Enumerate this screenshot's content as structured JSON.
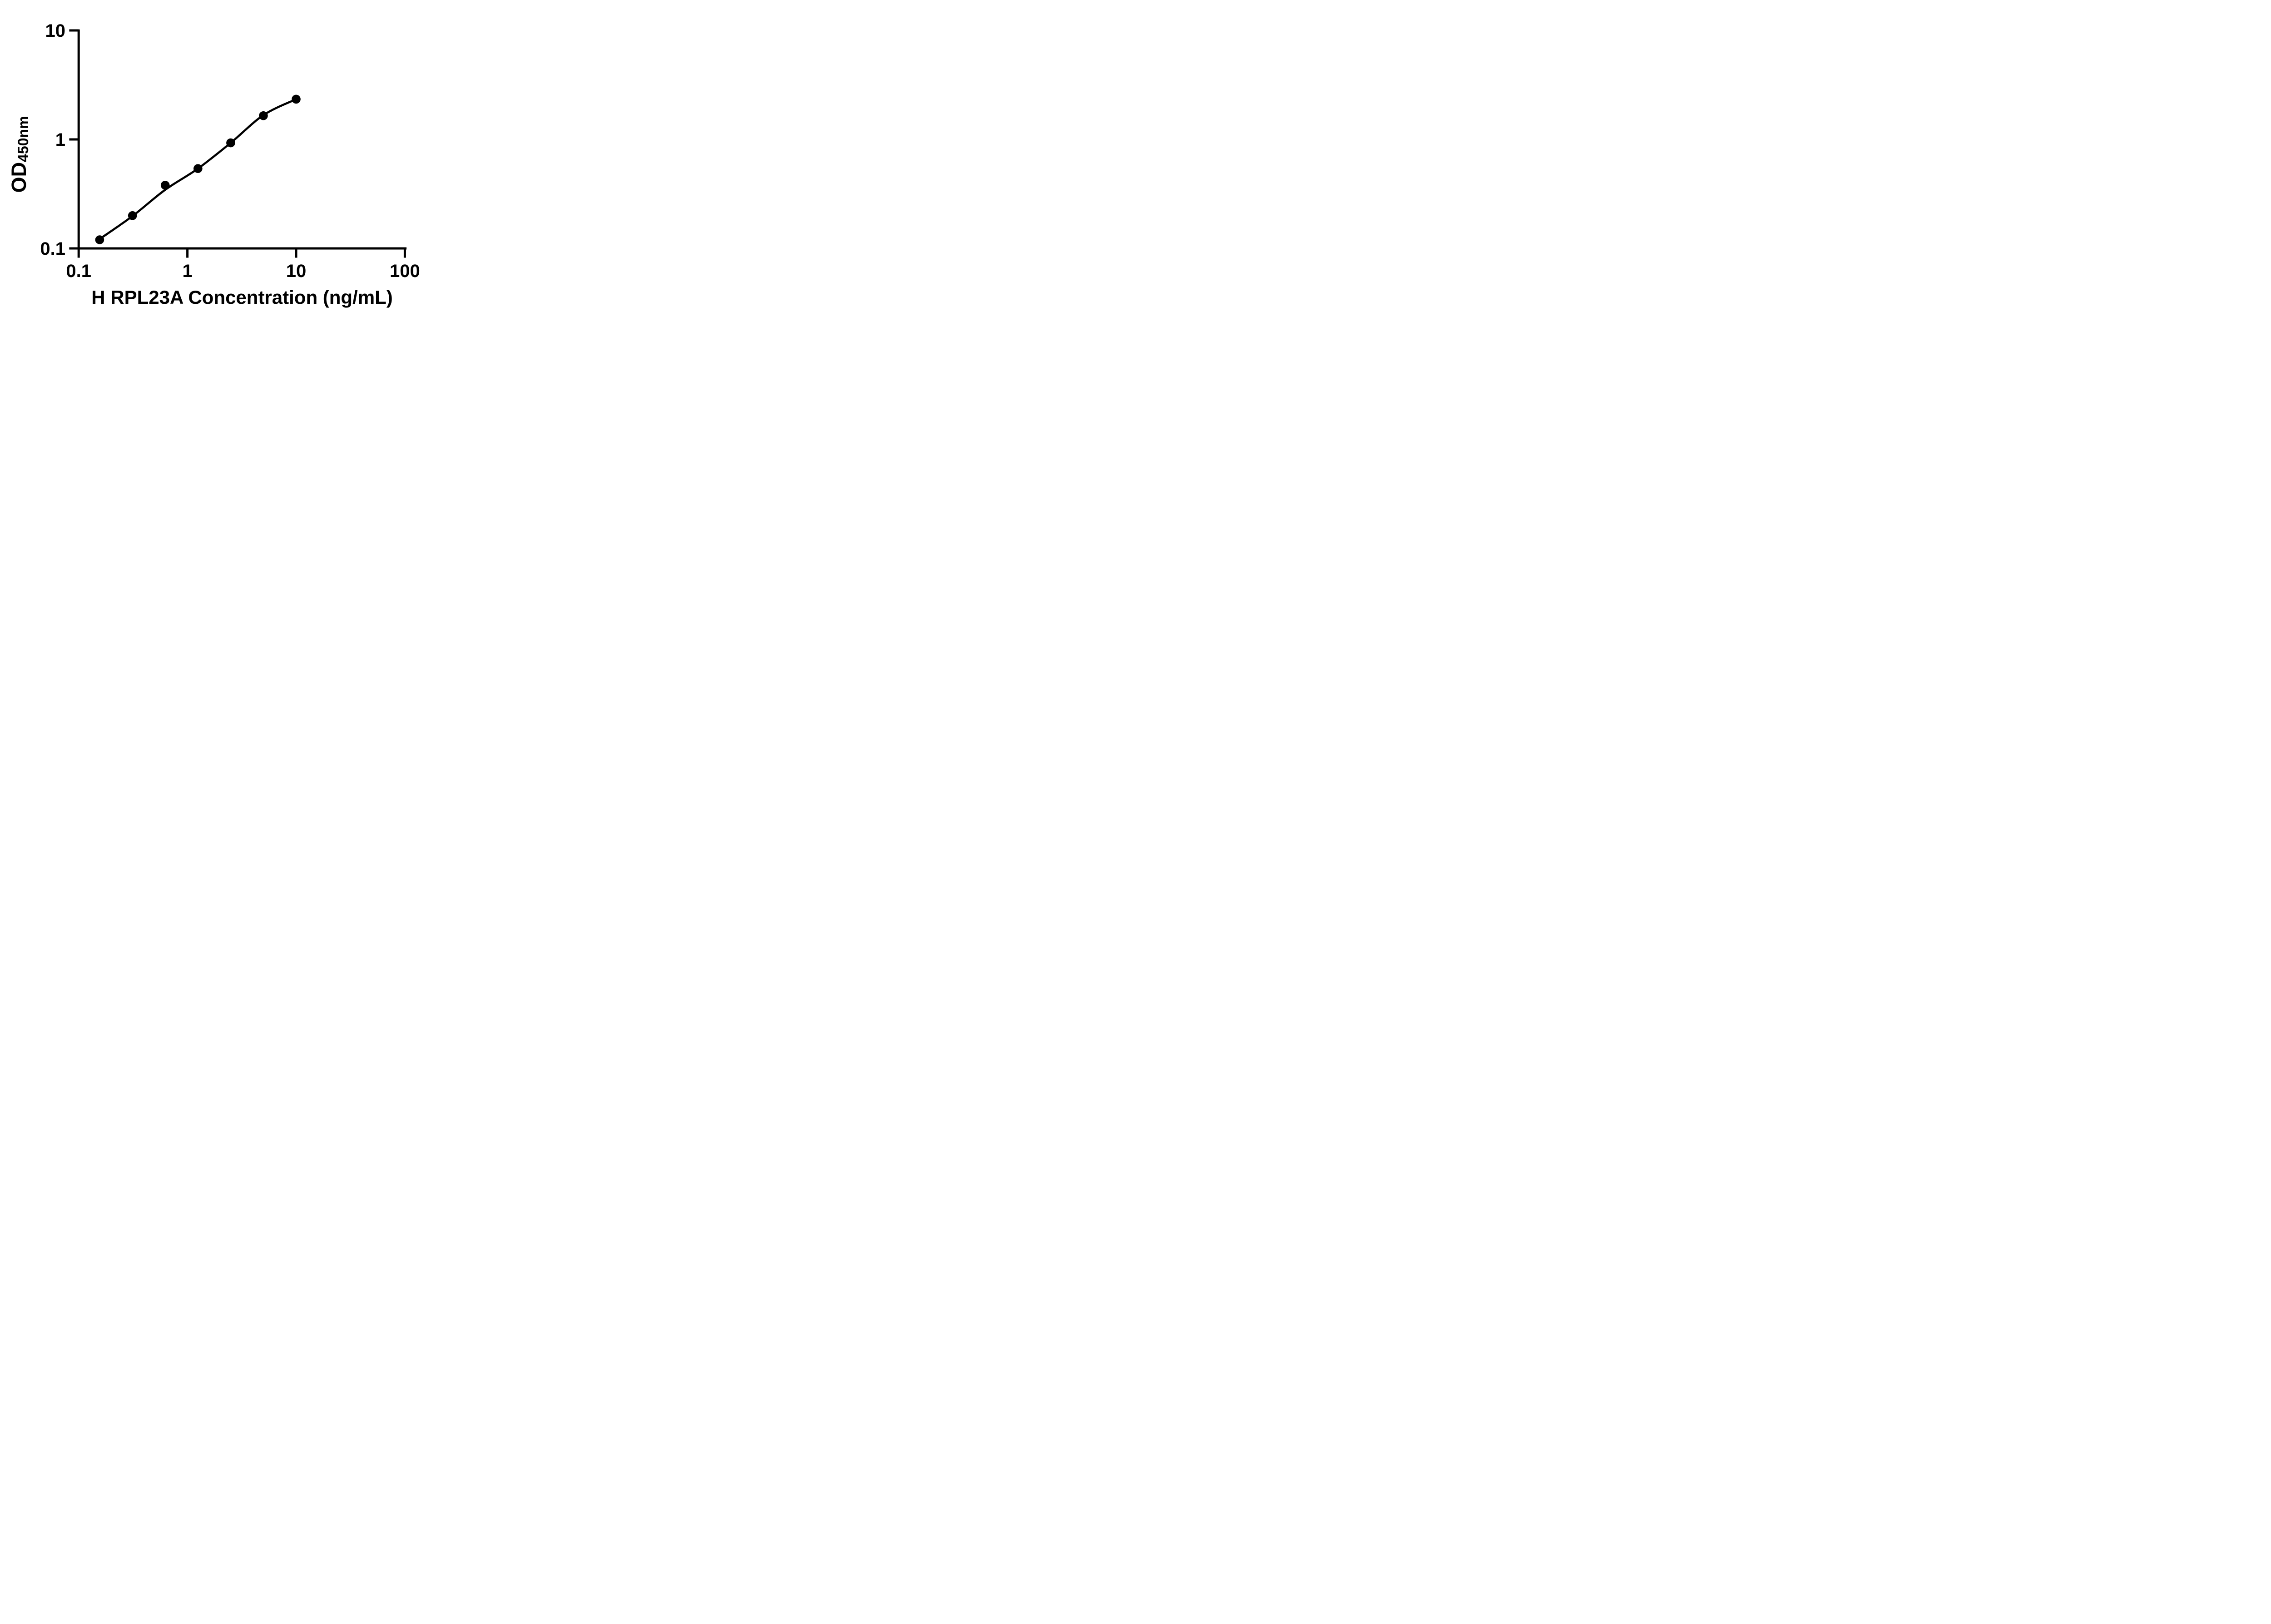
{
  "chart_data": {
    "type": "scatter",
    "title": "",
    "xlabel": "H RPL23A Concentration (ng/mL)",
    "ylabel_main": "OD",
    "ylabel_sub": "450nm",
    "x_scale": "log",
    "y_scale": "log",
    "xlim": [
      0.1,
      100
    ],
    "ylim": [
      0.1,
      10
    ],
    "x_ticks": [
      "0.1",
      "1",
      "10",
      "100"
    ],
    "y_ticks": [
      "10",
      "1",
      "0.1"
    ],
    "grid": "off",
    "legend": "none",
    "marker": "filled-circle",
    "marker_color": "#000000",
    "line_color": "#000000",
    "axis_color": "#000000",
    "background_color": "#ffffff",
    "points": [
      {
        "x": 0.156,
        "y": 0.12
      },
      {
        "x": 0.3125,
        "y": 0.2
      },
      {
        "x": 0.625,
        "y": 0.38
      },
      {
        "x": 1.25,
        "y": 0.54
      },
      {
        "x": 2.5,
        "y": 0.93
      },
      {
        "x": 5,
        "y": 1.65
      },
      {
        "x": 10,
        "y": 2.34
      }
    ],
    "fit_curve_points": [
      {
        "x": 0.156,
        "y": 0.122
      },
      {
        "x": 0.3125,
        "y": 0.198
      },
      {
        "x": 0.625,
        "y": 0.345
      },
      {
        "x": 1.25,
        "y": 0.54
      },
      {
        "x": 2.5,
        "y": 0.93
      },
      {
        "x": 5,
        "y": 1.67
      },
      {
        "x": 10,
        "y": 2.34
      }
    ]
  }
}
